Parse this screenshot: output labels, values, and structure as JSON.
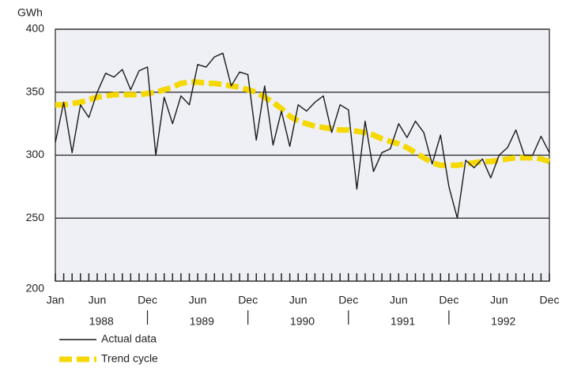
{
  "chart_data": {
    "type": "line",
    "y_label": "GWh",
    "categories": [
      "Jan",
      null,
      null,
      null,
      null,
      "Jun",
      null,
      null,
      null,
      null,
      null,
      "Dec",
      null,
      null,
      null,
      null,
      null,
      "Jun",
      null,
      null,
      null,
      null,
      null,
      "Dec",
      null,
      null,
      null,
      null,
      null,
      "Jun",
      null,
      null,
      null,
      null,
      null,
      "Dec",
      null,
      null,
      null,
      null,
      null,
      "Jun",
      null,
      null,
      null,
      null,
      null,
      "Dec",
      null,
      null,
      null,
      null,
      null,
      "Jun",
      null,
      null,
      null,
      null,
      null,
      "Dec"
    ],
    "years": [
      "1988",
      "1989",
      "1990",
      "1991",
      "1992"
    ],
    "series": [
      {
        "name": "Actual data",
        "color": "#1a1a1a",
        "style": "solid",
        "values": [
          310,
          342,
          302,
          340,
          330,
          350,
          365,
          362,
          368,
          352,
          367,
          370,
          300,
          346,
          325,
          347,
          340,
          372,
          370,
          378,
          381,
          355,
          366,
          364,
          312,
          355,
          308,
          335,
          307,
          340,
          335,
          342,
          347,
          318,
          340,
          336,
          273,
          327,
          287,
          302,
          305,
          325,
          314,
          327,
          318,
          293,
          316,
          275,
          250,
          296,
          290,
          297,
          282,
          300,
          306,
          320,
          300,
          300,
          315,
          302
        ]
      },
      {
        "name": "Trend cycle",
        "color": "#f5d800",
        "style": "dashed",
        "values": [
          340,
          340,
          341,
          342,
          344,
          346,
          347,
          348,
          348,
          348,
          348,
          349,
          350,
          352,
          354,
          357,
          358,
          358,
          357,
          357,
          356,
          355,
          354,
          352,
          350,
          346,
          342,
          337,
          331,
          327,
          325,
          323,
          322,
          321,
          320,
          320,
          319,
          318,
          316,
          313,
          311,
          309,
          306,
          302,
          298,
          294,
          292,
          292,
          292,
          293,
          294,
          295,
          295,
          296,
          297,
          298,
          298,
          298,
          297,
          295
        ]
      }
    ],
    "ylim": [
      200,
      400
    ],
    "yticks": [
      200,
      250,
      300,
      350,
      400
    ],
    "grid": true
  }
}
